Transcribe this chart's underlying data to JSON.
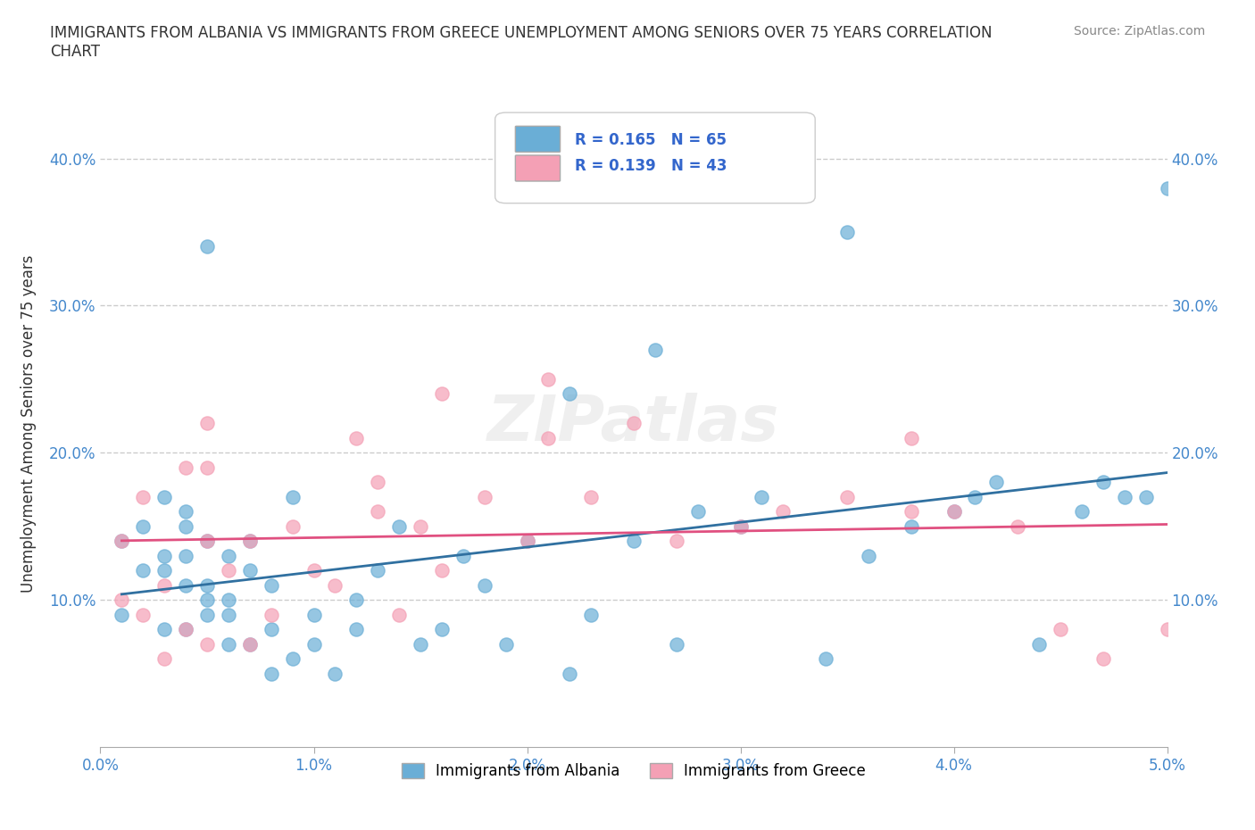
{
  "title": "IMMIGRANTS FROM ALBANIA VS IMMIGRANTS FROM GREECE UNEMPLOYMENT AMONG SENIORS OVER 75 YEARS CORRELATION\nCHART",
  "source": "Source: ZipAtlas.com",
  "xlabel_bottom": "",
  "ylabel": "Unemployment Among Seniors over 75 years",
  "legend_albania": "Immigrants from Albania",
  "legend_greece": "Immigrants from Greece",
  "R_albania": 0.165,
  "N_albania": 65,
  "R_greece": 0.139,
  "N_greece": 43,
  "color_albania": "#6aaed6",
  "color_greece": "#f4a0b5",
  "trendline_albania": "#3070a0",
  "trendline_greece": "#e05080",
  "xlim": [
    0.0,
    0.05
  ],
  "ylim": [
    0.0,
    0.44
  ],
  "xticks": [
    0.0,
    0.01,
    0.02,
    0.03,
    0.04,
    0.05
  ],
  "yticks": [
    0.0,
    0.1,
    0.2,
    0.3,
    0.4
  ],
  "xtick_labels": [
    "0.0%",
    "1.0%",
    "2.0%",
    "3.0%",
    "4.0%",
    "5.0%"
  ],
  "ytick_labels_left": [
    "",
    "10.0%",
    "20.0%",
    "30.0%",
    "40.0%"
  ],
  "ytick_labels_right": [
    "",
    "10.0%",
    "20.0%",
    "30.0%",
    "40.0%"
  ],
  "albania_x": [
    0.001,
    0.001,
    0.002,
    0.002,
    0.003,
    0.003,
    0.003,
    0.003,
    0.004,
    0.004,
    0.004,
    0.004,
    0.004,
    0.005,
    0.005,
    0.005,
    0.005,
    0.006,
    0.006,
    0.006,
    0.006,
    0.007,
    0.007,
    0.007,
    0.008,
    0.008,
    0.008,
    0.009,
    0.01,
    0.01,
    0.011,
    0.012,
    0.012,
    0.013,
    0.014,
    0.015,
    0.016,
    0.017,
    0.018,
    0.019,
    0.02,
    0.022,
    0.023,
    0.025,
    0.027,
    0.028,
    0.03,
    0.031,
    0.034,
    0.036,
    0.038,
    0.04,
    0.041,
    0.042,
    0.044,
    0.046,
    0.048,
    0.022,
    0.026,
    0.035,
    0.047,
    0.049,
    0.05,
    0.005,
    0.009
  ],
  "albania_y": [
    0.09,
    0.14,
    0.12,
    0.15,
    0.08,
    0.12,
    0.13,
    0.17,
    0.08,
    0.11,
    0.13,
    0.15,
    0.16,
    0.09,
    0.1,
    0.11,
    0.14,
    0.07,
    0.09,
    0.1,
    0.13,
    0.07,
    0.12,
    0.14,
    0.05,
    0.08,
    0.11,
    0.06,
    0.07,
    0.09,
    0.05,
    0.08,
    0.1,
    0.12,
    0.15,
    0.07,
    0.08,
    0.13,
    0.11,
    0.07,
    0.14,
    0.05,
    0.09,
    0.14,
    0.07,
    0.16,
    0.15,
    0.17,
    0.06,
    0.13,
    0.15,
    0.16,
    0.17,
    0.18,
    0.07,
    0.16,
    0.17,
    0.24,
    0.27,
    0.35,
    0.18,
    0.17,
    0.38,
    0.34,
    0.17
  ],
  "greece_x": [
    0.001,
    0.001,
    0.002,
    0.002,
    0.003,
    0.003,
    0.004,
    0.004,
    0.005,
    0.005,
    0.005,
    0.006,
    0.007,
    0.007,
    0.008,
    0.009,
    0.01,
    0.011,
    0.012,
    0.013,
    0.014,
    0.015,
    0.016,
    0.018,
    0.02,
    0.021,
    0.023,
    0.025,
    0.027,
    0.03,
    0.032,
    0.035,
    0.038,
    0.04,
    0.043,
    0.005,
    0.013,
    0.016,
    0.021,
    0.038,
    0.045,
    0.047,
    0.05
  ],
  "greece_y": [
    0.1,
    0.14,
    0.09,
    0.17,
    0.06,
    0.11,
    0.08,
    0.19,
    0.07,
    0.14,
    0.19,
    0.12,
    0.07,
    0.14,
    0.09,
    0.15,
    0.12,
    0.11,
    0.21,
    0.18,
    0.09,
    0.15,
    0.12,
    0.17,
    0.14,
    0.21,
    0.17,
    0.22,
    0.14,
    0.15,
    0.16,
    0.17,
    0.16,
    0.16,
    0.15,
    0.22,
    0.16,
    0.24,
    0.25,
    0.21,
    0.08,
    0.06,
    0.08
  ],
  "watermark": "ZIPatlas",
  "background_color": "#ffffff",
  "grid_color": "#cccccc"
}
